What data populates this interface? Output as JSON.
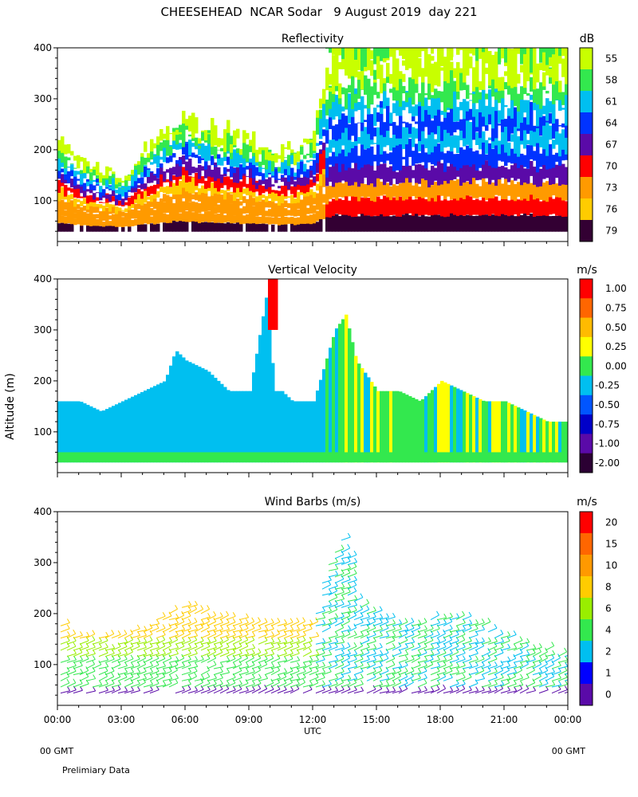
{
  "main_title": "CHEESEHEAD  NCAR Sodar   9 August 2019  day 221",
  "y_axis_label": "Altitude (m)",
  "x_axis_label": "UTC",
  "gmt_left": "00 GMT",
  "gmt_right": "00 GMT",
  "footer_note": "Prelimiary Data",
  "colors": {
    "background": "#ffffff",
    "axis": "#000000"
  },
  "chart_data": [
    {
      "type": "heatmap",
      "title": "Reflectivity",
      "unit": "dB",
      "xlabel": "UTC",
      "ylabel": "Altitude (m)",
      "x_ticks": [
        "00:00",
        "03:00",
        "06:00",
        "09:00",
        "12:00",
        "15:00",
        "18:00",
        "21:00",
        "00:00"
      ],
      "xlim_hours": [
        0,
        24
      ],
      "y_ticks": [
        "100",
        "200",
        "300",
        "400"
      ],
      "ylim": [
        20,
        400
      ],
      "colorbar_labels": [
        "55",
        "58",
        "61",
        "64",
        "67",
        "70",
        "73",
        "76",
        "79"
      ],
      "colorbar_colors": [
        "#c8ff00",
        "#33e84e",
        "#00bff0",
        "#0033ff",
        "#5a0aa8",
        "#ff0000",
        "#ff9a00",
        "#ffcc00",
        "#330033"
      ],
      "top_hours": [
        0,
        1,
        2,
        3,
        4,
        5,
        6,
        7,
        8,
        9,
        10,
        11,
        12,
        12.5,
        13,
        14,
        15,
        16,
        17,
        18,
        19,
        20,
        21,
        22,
        23,
        24
      ],
      "top_heights": [
        220,
        180,
        160,
        150,
        200,
        240,
        260,
        240,
        230,
        220,
        200,
        200,
        230,
        350,
        400,
        400,
        400,
        400,
        400,
        400,
        400,
        400,
        400,
        400,
        400,
        400
      ]
    },
    {
      "type": "heatmap",
      "title": "Vertical Velocity",
      "unit": "m/s",
      "xlabel": "UTC",
      "ylabel": "Altitude (m)",
      "x_ticks": [
        "00:00",
        "03:00",
        "06:00",
        "09:00",
        "12:00",
        "15:00",
        "18:00",
        "21:00",
        "00:00"
      ],
      "xlim_hours": [
        0,
        24
      ],
      "y_ticks": [
        "100",
        "200",
        "300",
        "400"
      ],
      "ylim": [
        20,
        400
      ],
      "colorbar_labels": [
        "1.00",
        "0.75",
        "0.50",
        "0.25",
        "0.00",
        "-0.25",
        "-0.50",
        "-0.75",
        "-1.00",
        "-2.00"
      ],
      "colorbar_colors": [
        "#ff0000",
        "#ff6600",
        "#ffbb00",
        "#ffff00",
        "#33e84e",
        "#00bff0",
        "#0055ff",
        "#0000c8",
        "#5a0aa8",
        "#2b0033"
      ],
      "top_hours": [
        0,
        1,
        2,
        3,
        4,
        5,
        5.5,
        6,
        7,
        8,
        9,
        9.9,
        10.1,
        10.5,
        11,
        12,
        13,
        13.5,
        14,
        15,
        16,
        17,
        18,
        19,
        20,
        21,
        22,
        23,
        24
      ],
      "top_heights": [
        160,
        160,
        140,
        160,
        180,
        200,
        260,
        240,
        220,
        180,
        180,
        400,
        180,
        180,
        160,
        160,
        300,
        330,
        240,
        180,
        180,
        160,
        200,
        180,
        160,
        160,
        140,
        120,
        120
      ]
    },
    {
      "type": "scatter",
      "title": "Wind Barbs (m/s)",
      "unit": "m/s",
      "xlabel": "UTC",
      "ylabel": "Altitude (m)",
      "x_ticks": [
        "00:00",
        "03:00",
        "06:00",
        "09:00",
        "12:00",
        "15:00",
        "18:00",
        "21:00",
        "00:00"
      ],
      "xlim_hours": [
        0,
        24
      ],
      "y_ticks": [
        "100",
        "200",
        "300",
        "400"
      ],
      "ylim": [
        20,
        400
      ],
      "colorbar_labels": [
        "20",
        "15",
        "10",
        "8",
        "6",
        "4",
        "2",
        "1",
        "0"
      ],
      "colorbar_colors": [
        "#ff0000",
        "#ff6600",
        "#ff9900",
        "#ffcc00",
        "#99ee00",
        "#33e84e",
        "#00bff0",
        "#0000ff",
        "#5a0aa8"
      ],
      "top_hours": [
        0,
        1,
        2,
        3,
        4,
        5,
        6,
        7,
        8,
        9,
        10,
        11,
        12,
        12.5,
        13,
        13.5,
        14,
        15,
        16,
        17,
        18,
        19,
        20,
        21,
        22,
        23,
        24
      ],
      "top_heights": [
        180,
        160,
        160,
        160,
        180,
        200,
        220,
        200,
        200,
        180,
        180,
        180,
        180,
        280,
        320,
        360,
        220,
        200,
        180,
        180,
        200,
        200,
        180,
        160,
        140,
        130,
        120
      ]
    }
  ]
}
